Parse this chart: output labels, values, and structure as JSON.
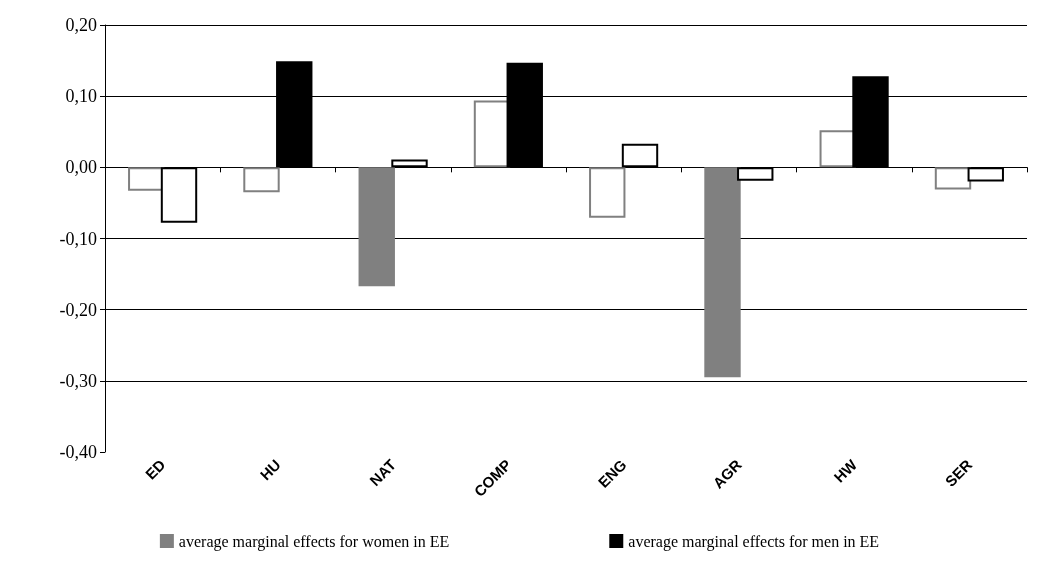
{
  "chart_data": {
    "type": "bar",
    "categories": [
      "ED",
      "HU",
      "NAT",
      "COMP",
      "ENG",
      "AGR",
      "HW",
      "SER"
    ],
    "series": [
      {
        "name": "average marginal effects for women in EE",
        "color": "#808080",
        "values": [
          -0.033,
          -0.035,
          -0.167,
          0.094,
          -0.071,
          -0.295,
          0.052,
          -0.031
        ],
        "colors": [
          "#ffffff",
          "#ffffff",
          "#808080",
          "#ffffff",
          "#ffffff",
          "#808080",
          "#ffffff",
          "#ffffff"
        ]
      },
      {
        "name": "average marginal effects for men in EE",
        "color": "#000000",
        "values": [
          -0.078,
          0.149,
          0.011,
          0.147,
          0.033,
          -0.019,
          0.128,
          -0.02
        ],
        "colors": [
          "#ffffff",
          "#000000",
          "#ffffff",
          "#000000",
          "#ffffff",
          "#ffffff",
          "#000000",
          "#ffffff"
        ]
      }
    ],
    "ylim": [
      -0.4,
      0.2
    ],
    "yticks": [
      {
        "value": -0.4,
        "label": "-0,40"
      },
      {
        "value": -0.3,
        "label": "-0,30"
      },
      {
        "value": -0.2,
        "label": "-0,20"
      },
      {
        "value": -0.1,
        "label": "-0,10"
      },
      {
        "value": 0,
        "label": "0,00"
      },
      {
        "value": 0.1,
        "label": "0,10"
      },
      {
        "value": 0.2,
        "label": "0,20"
      }
    ],
    "grid": "y",
    "legend": "bottom"
  }
}
